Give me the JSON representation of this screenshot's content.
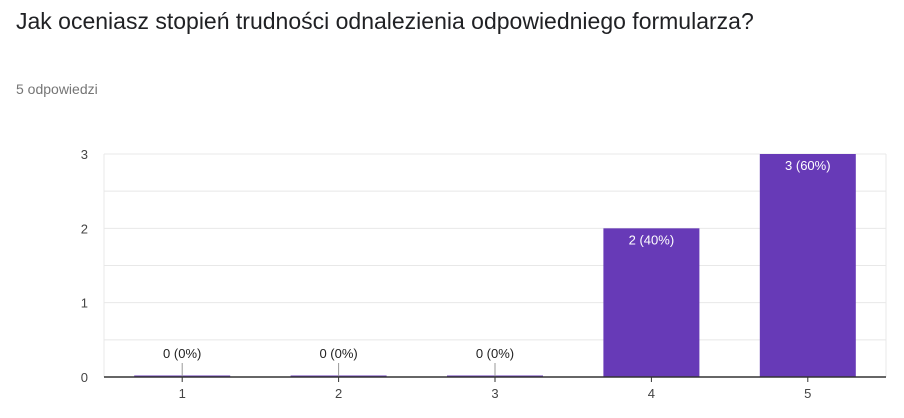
{
  "question": {
    "title": "Jak oceniasz stopień trudności odnalezienia odpowiedniego formularza?",
    "responses": "5 odpowiedzi"
  },
  "colors": {
    "bar": "#673ab7",
    "grid": "#e8e8e8",
    "axis": "#333333"
  },
  "chart_data": {
    "type": "bar",
    "categories": [
      "1",
      "2",
      "3",
      "4",
      "5"
    ],
    "values": [
      0,
      0,
      0,
      2,
      3
    ],
    "data_labels": [
      "0 (0%)",
      "0 (0%)",
      "0 (0%)",
      "2 (40%)",
      "3 (60%)"
    ],
    "y_ticks": [
      "0",
      "1",
      "2",
      "3"
    ],
    "ylim": [
      0,
      3
    ],
    "grid": true,
    "legend": "none"
  }
}
